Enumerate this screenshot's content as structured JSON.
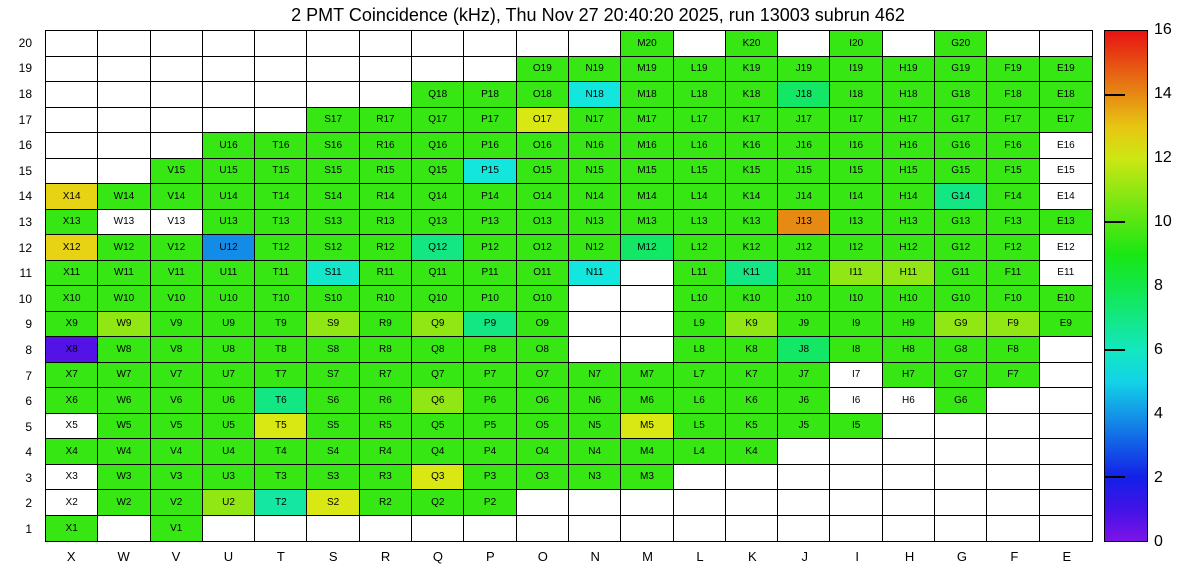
{
  "title": "2 PMT Coincidence (kHz), Thu Nov 27 20:40:20 2025, run 13003 subrun 462",
  "chart_data": {
    "type": "heatmap",
    "unit": "kHz",
    "columns": [
      "X",
      "W",
      "V",
      "U",
      "T",
      "S",
      "R",
      "Q",
      "P",
      "O",
      "N",
      "M",
      "L",
      "K",
      "J",
      "I",
      "H",
      "G",
      "F",
      "E"
    ],
    "rows": [
      20,
      19,
      18,
      17,
      16,
      15,
      14,
      13,
      12,
      11,
      10,
      9,
      8,
      7,
      6,
      5,
      4,
      3,
      2,
      1
    ],
    "scale": {
      "min": 0,
      "max": 16,
      "tick_labels": [
        0,
        2,
        4,
        6,
        8,
        10,
        12,
        14,
        16
      ],
      "marked_ticks": [
        2,
        6,
        10,
        14
      ],
      "palette": "rainbow violet-to-red",
      "hue_start": 270,
      "hue_end": 0,
      "saturation_pct": 85,
      "lightness_pct": 49
    },
    "note": "cells = [column, row, value_kHz]; value 0 = labeled empty (white) bin; missing = blank bin",
    "cells": [
      [
        "M",
        20,
        9.5
      ],
      [
        "K",
        20,
        9.5
      ],
      [
        "I",
        20,
        9.5
      ],
      [
        "G",
        20,
        9.5
      ],
      [
        "O",
        19,
        9.5
      ],
      [
        "N",
        19,
        9.5
      ],
      [
        "M",
        19,
        9.5
      ],
      [
        "L",
        19,
        9.5
      ],
      [
        "K",
        19,
        9.5
      ],
      [
        "J",
        19,
        9.5
      ],
      [
        "I",
        19,
        9.5
      ],
      [
        "H",
        19,
        9.5
      ],
      [
        "G",
        19,
        9.5
      ],
      [
        "F",
        19,
        9.5
      ],
      [
        "E",
        19,
        9.5
      ],
      [
        "Q",
        18,
        9.5
      ],
      [
        "P",
        18,
        9.5
      ],
      [
        "O",
        18,
        9.5
      ],
      [
        "N",
        18,
        5.5
      ],
      [
        "M",
        18,
        9.5
      ],
      [
        "L",
        18,
        9.5
      ],
      [
        "K",
        18,
        9.5
      ],
      [
        "J",
        18,
        7.5
      ],
      [
        "I",
        18,
        9.5
      ],
      [
        "H",
        18,
        9.5
      ],
      [
        "G",
        18,
        9.5
      ],
      [
        "F",
        18,
        9.5
      ],
      [
        "E",
        18,
        9.5
      ],
      [
        "S",
        17,
        9.5
      ],
      [
        "R",
        17,
        9.5
      ],
      [
        "Q",
        17,
        9.5
      ],
      [
        "P",
        17,
        9.5
      ],
      [
        "O",
        17,
        12.2
      ],
      [
        "N",
        17,
        9.5
      ],
      [
        "M",
        17,
        9.5
      ],
      [
        "L",
        17,
        9.5
      ],
      [
        "K",
        17,
        9.5
      ],
      [
        "J",
        17,
        9.5
      ],
      [
        "I",
        17,
        9.5
      ],
      [
        "H",
        17,
        9.5
      ],
      [
        "G",
        17,
        9.5
      ],
      [
        "F",
        17,
        9.5
      ],
      [
        "E",
        17,
        9.5
      ],
      [
        "U",
        16,
        9.5
      ],
      [
        "T",
        16,
        9.5
      ],
      [
        "S",
        16,
        9.5
      ],
      [
        "R",
        16,
        9.5
      ],
      [
        "Q",
        16,
        9.5
      ],
      [
        "P",
        16,
        9.5
      ],
      [
        "O",
        16,
        9.5
      ],
      [
        "N",
        16,
        9.5
      ],
      [
        "M",
        16,
        9.5
      ],
      [
        "L",
        16,
        9.5
      ],
      [
        "K",
        16,
        9.5
      ],
      [
        "J",
        16,
        9.5
      ],
      [
        "I",
        16,
        9.5
      ],
      [
        "H",
        16,
        9.5
      ],
      [
        "G",
        16,
        9.5
      ],
      [
        "F",
        16,
        9.5
      ],
      [
        "E",
        16,
        0
      ],
      [
        "V",
        15,
        9.5
      ],
      [
        "U",
        15,
        9.5
      ],
      [
        "T",
        15,
        9.5
      ],
      [
        "S",
        15,
        9.5
      ],
      [
        "R",
        15,
        9.5
      ],
      [
        "Q",
        15,
        9.5
      ],
      [
        "P",
        15,
        5.5
      ],
      [
        "O",
        15,
        9.5
      ],
      [
        "N",
        15,
        9.5
      ],
      [
        "M",
        15,
        9.5
      ],
      [
        "L",
        15,
        9.5
      ],
      [
        "K",
        15,
        9.5
      ],
      [
        "J",
        15,
        9.5
      ],
      [
        "I",
        15,
        9.5
      ],
      [
        "H",
        15,
        9.5
      ],
      [
        "G",
        15,
        9.5
      ],
      [
        "F",
        15,
        9.5
      ],
      [
        "E",
        15,
        0
      ],
      [
        "X",
        14,
        12.8
      ],
      [
        "W",
        14,
        9.5
      ],
      [
        "V",
        14,
        9.5
      ],
      [
        "U",
        14,
        9.5
      ],
      [
        "T",
        14,
        9.5
      ],
      [
        "S",
        14,
        9.5
      ],
      [
        "R",
        14,
        9.5
      ],
      [
        "Q",
        14,
        9.5
      ],
      [
        "P",
        14,
        9.5
      ],
      [
        "O",
        14,
        9.5
      ],
      [
        "N",
        14,
        9.5
      ],
      [
        "M",
        14,
        9.5
      ],
      [
        "L",
        14,
        9.5
      ],
      [
        "K",
        14,
        9.5
      ],
      [
        "J",
        14,
        9.5
      ],
      [
        "I",
        14,
        9.5
      ],
      [
        "H",
        14,
        9.5
      ],
      [
        "G",
        14,
        7
      ],
      [
        "F",
        14,
        9.5
      ],
      [
        "E",
        14,
        0
      ],
      [
        "X",
        13,
        9.5
      ],
      [
        "W",
        13,
        0
      ],
      [
        "V",
        13,
        0
      ],
      [
        "U",
        13,
        9.5
      ],
      [
        "T",
        13,
        9.5
      ],
      [
        "S",
        13,
        9.5
      ],
      [
        "R",
        13,
        9.5
      ],
      [
        "Q",
        13,
        9.5
      ],
      [
        "P",
        13,
        9.5
      ],
      [
        "O",
        13,
        9.5
      ],
      [
        "N",
        13,
        9.5
      ],
      [
        "M",
        13,
        9.5
      ],
      [
        "L",
        13,
        9.5
      ],
      [
        "K",
        13,
        9.5
      ],
      [
        "J",
        13,
        14
      ],
      [
        "I",
        13,
        9.5
      ],
      [
        "H",
        13,
        9.5
      ],
      [
        "G",
        13,
        9.5
      ],
      [
        "F",
        13,
        9.5
      ],
      [
        "E",
        13,
        9.5
      ],
      [
        "X",
        12,
        12.8
      ],
      [
        "W",
        12,
        9.5
      ],
      [
        "V",
        12,
        9.5
      ],
      [
        "U",
        12,
        3.8
      ],
      [
        "T",
        12,
        9.5
      ],
      [
        "S",
        12,
        9.5
      ],
      [
        "R",
        12,
        9.5
      ],
      [
        "Q",
        12,
        7
      ],
      [
        "P",
        12,
        9.5
      ],
      [
        "O",
        12,
        9.5
      ],
      [
        "N",
        12,
        9.5
      ],
      [
        "M",
        12,
        7.5
      ],
      [
        "L",
        12,
        9.5
      ],
      [
        "K",
        12,
        9.5
      ],
      [
        "J",
        12,
        9.5
      ],
      [
        "I",
        12,
        9.5
      ],
      [
        "H",
        12,
        9.5
      ],
      [
        "G",
        12,
        9.5
      ],
      [
        "F",
        12,
        9.5
      ],
      [
        "E",
        12,
        0
      ],
      [
        "X",
        11,
        9.5
      ],
      [
        "W",
        11,
        9.5
      ],
      [
        "V",
        11,
        9.5
      ],
      [
        "U",
        11,
        9.5
      ],
      [
        "T",
        11,
        9.5
      ],
      [
        "S",
        11,
        5.8
      ],
      [
        "R",
        11,
        9.5
      ],
      [
        "Q",
        11,
        9.5
      ],
      [
        "P",
        11,
        9.5
      ],
      [
        "O",
        11,
        9.5
      ],
      [
        "N",
        11,
        5.5
      ],
      [
        "L",
        11,
        9.5
      ],
      [
        "K",
        11,
        7
      ],
      [
        "J",
        11,
        9.5
      ],
      [
        "I",
        11,
        11
      ],
      [
        "H",
        11,
        11
      ],
      [
        "G",
        11,
        9.5
      ],
      [
        "F",
        11,
        9.5
      ],
      [
        "E",
        11,
        0
      ],
      [
        "X",
        10,
        9.5
      ],
      [
        "W",
        10,
        9.5
      ],
      [
        "V",
        10,
        9.5
      ],
      [
        "U",
        10,
        9.5
      ],
      [
        "T",
        10,
        9.5
      ],
      [
        "S",
        10,
        9.5
      ],
      [
        "R",
        10,
        9.5
      ],
      [
        "Q",
        10,
        9.5
      ],
      [
        "P",
        10,
        9.5
      ],
      [
        "O",
        10,
        9.5
      ],
      [
        "L",
        10,
        9.5
      ],
      [
        "K",
        10,
        9.5
      ],
      [
        "J",
        10,
        9.5
      ],
      [
        "I",
        10,
        9.5
      ],
      [
        "H",
        10,
        9.5
      ],
      [
        "G",
        10,
        9.5
      ],
      [
        "F",
        10,
        9.5
      ],
      [
        "E",
        10,
        9.5
      ],
      [
        "X",
        9,
        9.5
      ],
      [
        "W",
        9,
        11
      ],
      [
        "V",
        9,
        9.5
      ],
      [
        "U",
        9,
        9.5
      ],
      [
        "T",
        9,
        9.5
      ],
      [
        "S",
        9,
        11
      ],
      [
        "R",
        9,
        9.5
      ],
      [
        "Q",
        9,
        11
      ],
      [
        "P",
        9,
        7
      ],
      [
        "O",
        9,
        9.5
      ],
      [
        "L",
        9,
        9.5
      ],
      [
        "K",
        9,
        11
      ],
      [
        "J",
        9,
        9.5
      ],
      [
        "I",
        9,
        9.5
      ],
      [
        "H",
        9,
        9.5
      ],
      [
        "G",
        9,
        11
      ],
      [
        "F",
        9,
        11
      ],
      [
        "E",
        9,
        9.5
      ],
      [
        "X",
        8,
        0.7
      ],
      [
        "W",
        8,
        9.5
      ],
      [
        "V",
        8,
        9.5
      ],
      [
        "U",
        8,
        9.5
      ],
      [
        "T",
        8,
        9.5
      ],
      [
        "S",
        8,
        9.5
      ],
      [
        "R",
        8,
        9.5
      ],
      [
        "Q",
        8,
        9.5
      ],
      [
        "P",
        8,
        9.5
      ],
      [
        "O",
        8,
        9.5
      ],
      [
        "L",
        8,
        9.5
      ],
      [
        "K",
        8,
        9.5
      ],
      [
        "J",
        8,
        7.5
      ],
      [
        "I",
        8,
        9.5
      ],
      [
        "H",
        8,
        9.5
      ],
      [
        "G",
        8,
        9.5
      ],
      [
        "F",
        8,
        9.5
      ],
      [
        "X",
        7,
        9.5
      ],
      [
        "W",
        7,
        9.5
      ],
      [
        "V",
        7,
        9.5
      ],
      [
        "U",
        7,
        9.5
      ],
      [
        "T",
        7,
        9.5
      ],
      [
        "S",
        7,
        9.5
      ],
      [
        "R",
        7,
        9.5
      ],
      [
        "Q",
        7,
        9.5
      ],
      [
        "P",
        7,
        9.5
      ],
      [
        "O",
        7,
        9.5
      ],
      [
        "N",
        7,
        9.5
      ],
      [
        "M",
        7,
        9.5
      ],
      [
        "L",
        7,
        9.5
      ],
      [
        "K",
        7,
        9.5
      ],
      [
        "J",
        7,
        9.5
      ],
      [
        "I",
        7,
        0
      ],
      [
        "H",
        7,
        9.5
      ],
      [
        "G",
        7,
        9.5
      ],
      [
        "F",
        7,
        9.5
      ],
      [
        "X",
        6,
        9.5
      ],
      [
        "W",
        6,
        9.5
      ],
      [
        "V",
        6,
        9.5
      ],
      [
        "U",
        6,
        9.5
      ],
      [
        "T",
        6,
        7
      ],
      [
        "S",
        6,
        9.5
      ],
      [
        "R",
        6,
        9.5
      ],
      [
        "Q",
        6,
        11
      ],
      [
        "P",
        6,
        9.5
      ],
      [
        "O",
        6,
        9.5
      ],
      [
        "N",
        6,
        9.5
      ],
      [
        "M",
        6,
        9.5
      ],
      [
        "L",
        6,
        9.5
      ],
      [
        "K",
        6,
        9.5
      ],
      [
        "J",
        6,
        9.5
      ],
      [
        "I",
        6,
        0
      ],
      [
        "H",
        6,
        0
      ],
      [
        "G",
        6,
        9.5
      ],
      [
        "X",
        5,
        0
      ],
      [
        "W",
        5,
        9.5
      ],
      [
        "V",
        5,
        9.5
      ],
      [
        "U",
        5,
        9.5
      ],
      [
        "T",
        5,
        12.2
      ],
      [
        "S",
        5,
        9.5
      ],
      [
        "R",
        5,
        9.5
      ],
      [
        "Q",
        5,
        9.5
      ],
      [
        "P",
        5,
        9.5
      ],
      [
        "O",
        5,
        9.5
      ],
      [
        "N",
        5,
        9.5
      ],
      [
        "M",
        5,
        12.2
      ],
      [
        "L",
        5,
        9.5
      ],
      [
        "K",
        5,
        9.5
      ],
      [
        "J",
        5,
        9.5
      ],
      [
        "I",
        5,
        9.5
      ],
      [
        "X",
        4,
        9.5
      ],
      [
        "W",
        4,
        9.5
      ],
      [
        "V",
        4,
        9.5
      ],
      [
        "U",
        4,
        9.5
      ],
      [
        "T",
        4,
        9.5
      ],
      [
        "S",
        4,
        9.5
      ],
      [
        "R",
        4,
        9.5
      ],
      [
        "Q",
        4,
        9.5
      ],
      [
        "P",
        4,
        9.5
      ],
      [
        "O",
        4,
        9.5
      ],
      [
        "N",
        4,
        9.5
      ],
      [
        "M",
        4,
        9.5
      ],
      [
        "L",
        4,
        9.5
      ],
      [
        "K",
        4,
        9.5
      ],
      [
        "X",
        3,
        0
      ],
      [
        "W",
        3,
        9.5
      ],
      [
        "V",
        3,
        9.5
      ],
      [
        "U",
        3,
        9.5
      ],
      [
        "T",
        3,
        9.5
      ],
      [
        "S",
        3,
        9.5
      ],
      [
        "R",
        3,
        9.5
      ],
      [
        "Q",
        3,
        12.2
      ],
      [
        "P",
        3,
        9.5
      ],
      [
        "O",
        3,
        9.5
      ],
      [
        "N",
        3,
        9.5
      ],
      [
        "M",
        3,
        9.5
      ],
      [
        "X",
        2,
        0
      ],
      [
        "W",
        2,
        9.5
      ],
      [
        "V",
        2,
        9.5
      ],
      [
        "U",
        2,
        11
      ],
      [
        "T",
        2,
        6.5
      ],
      [
        "S",
        2,
        12.2
      ],
      [
        "R",
        2,
        9.5
      ],
      [
        "Q",
        2,
        9.5
      ],
      [
        "P",
        2,
        9.5
      ],
      [
        "X",
        1,
        9.5
      ],
      [
        "V",
        1,
        9.5
      ]
    ]
  }
}
